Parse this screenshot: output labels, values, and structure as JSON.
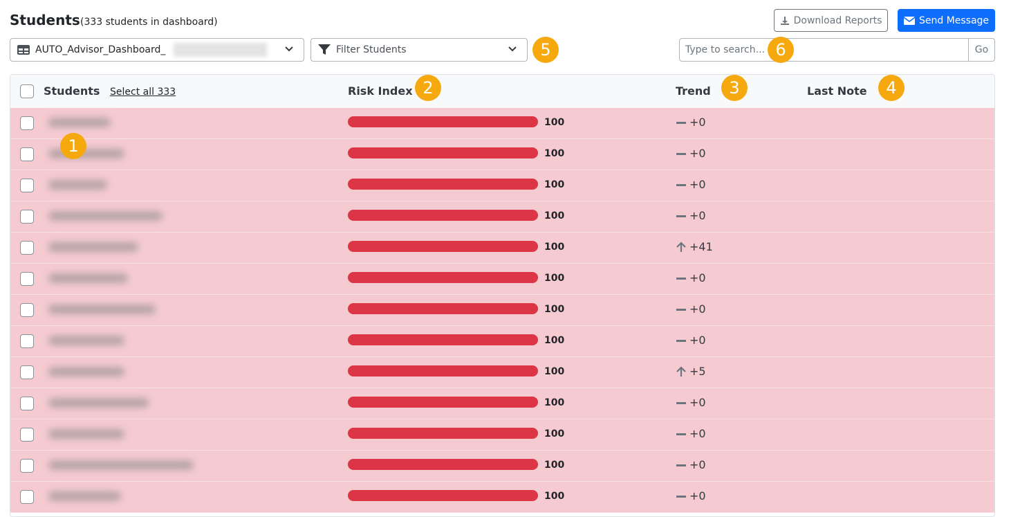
{
  "header": {
    "title": "Students",
    "subtitle": "(333 students in dashboard)",
    "download": "Download Reports",
    "send": "Send Message"
  },
  "toolbar": {
    "dashboard": "AUTO_Advisor_Dashboard_",
    "filter": "Filter Students",
    "search_placeholder": "Type to search...",
    "go": "Go"
  },
  "table": {
    "columns": [
      "Students",
      "Risk Index",
      "Trend",
      "Last Note"
    ],
    "select_all": "Select all 333",
    "rows": [
      {
        "risk": 100,
        "trend": "+0",
        "direction": "flat"
      },
      {
        "risk": 100,
        "trend": "+0",
        "direction": "flat"
      },
      {
        "risk": 100,
        "trend": "+0",
        "direction": "flat"
      },
      {
        "risk": 100,
        "trend": "+0",
        "direction": "flat"
      },
      {
        "risk": 100,
        "trend": "+41",
        "direction": "up"
      },
      {
        "risk": 100,
        "trend": "+0",
        "direction": "flat"
      },
      {
        "risk": 100,
        "trend": "+0",
        "direction": "flat"
      },
      {
        "risk": 100,
        "trend": "+0",
        "direction": "flat"
      },
      {
        "risk": 100,
        "trend": "+5",
        "direction": "up"
      },
      {
        "risk": 100,
        "trend": "+0",
        "direction": "flat"
      },
      {
        "risk": 100,
        "trend": "+0",
        "direction": "flat"
      },
      {
        "risk": 100,
        "trend": "+0",
        "direction": "flat"
      },
      {
        "risk": 100,
        "trend": "+0",
        "direction": "flat"
      }
    ]
  },
  "callouts": [
    "1",
    "2",
    "3",
    "4",
    "5",
    "6"
  ]
}
